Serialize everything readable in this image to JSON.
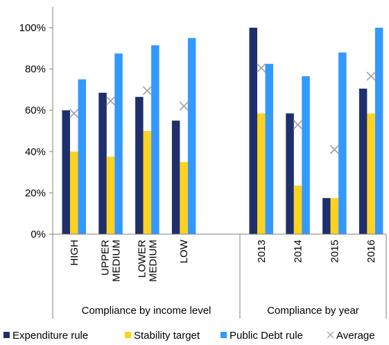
{
  "chart_data": {
    "type": "bar",
    "title": "",
    "xlabel": "",
    "ylabel": "",
    "ylim": [
      0,
      1
    ],
    "yticks": [
      "0%",
      "20%",
      "40%",
      "60%",
      "80%",
      "100%"
    ],
    "grid": false,
    "legend_position": "bottom",
    "groups": [
      {
        "label": "Compliance by income level",
        "categories": [
          "HIGH",
          "UPPER MEDIUM",
          "LOWER MEDIUM",
          "LOW"
        ]
      },
      {
        "label": "Compliance by year",
        "categories": [
          "2013",
          "2014",
          "2015",
          "2016"
        ]
      }
    ],
    "categories": [
      "HIGH",
      "UPPER MEDIUM",
      "LOWER MEDIUM",
      "LOW",
      "2013",
      "2014",
      "2015",
      "2016"
    ],
    "series": [
      {
        "name": "Expenditure rule",
        "color": "#1f2f6b",
        "marker": "bar",
        "values": [
          0.6,
          0.685,
          0.665,
          0.55,
          1.0,
          0.585,
          0.175,
          0.705
        ]
      },
      {
        "name": "Stability target",
        "color": "#ffd21f",
        "marker": "bar",
        "values": [
          0.4,
          0.375,
          0.5,
          0.35,
          0.585,
          0.235,
          0.175,
          0.585
        ]
      },
      {
        "name": "Public Debt rule",
        "color": "#3399ff",
        "marker": "bar",
        "values": [
          0.75,
          0.875,
          0.915,
          0.95,
          0.825,
          0.765,
          0.88,
          1.0
        ]
      },
      {
        "name": "Average",
        "color": "#a6a6a6",
        "marker": "x",
        "values": [
          0.585,
          0.645,
          0.695,
          0.62,
          0.805,
          0.53,
          0.41,
          0.765
        ]
      }
    ]
  }
}
